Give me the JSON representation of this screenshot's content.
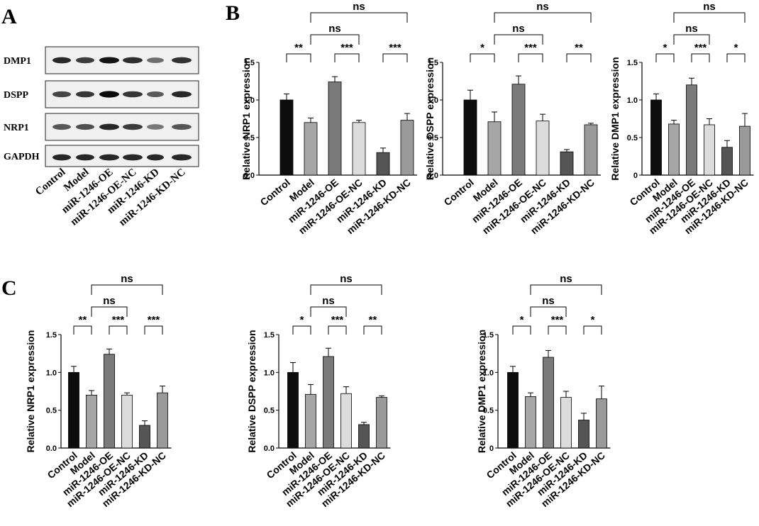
{
  "panels": {
    "a": "A",
    "b": "B",
    "c": "C"
  },
  "western_blot": {
    "rows": [
      "DMP1",
      "DSPP",
      "NRP1",
      "GAPDH"
    ],
    "lanes": [
      "Control",
      "Model",
      "miR-1246-OE",
      "miR-1246-OE-NC",
      "miR-1246-KD",
      "miR-1246-KD-NC"
    ],
    "band_intensity": {
      "DMP1": [
        0.85,
        0.75,
        0.95,
        0.82,
        0.5,
        0.8
      ],
      "DSPP": [
        0.7,
        0.78,
        1.0,
        0.78,
        0.6,
        0.85
      ],
      "NRP1": [
        0.62,
        0.65,
        0.85,
        0.75,
        0.45,
        0.62
      ],
      "GAPDH": [
        0.85,
        0.85,
        0.85,
        0.85,
        0.85,
        0.85
      ]
    }
  },
  "colors": {
    "bars": [
      "#0d0d0d",
      "#a6a6a6",
      "#7a7a7a",
      "#dcdcdc",
      "#555555",
      "#9a9a9a"
    ]
  },
  "chart_data": [
    {
      "panel": "B",
      "type": "bar",
      "categories": [
        "Control",
        "Model",
        "miR-1246-OE",
        "miR-1246-OE-NC",
        "miR-1246-KD",
        "miR-1246-KD-NC"
      ],
      "values": [
        1.0,
        0.7,
        1.24,
        0.7,
        0.3,
        0.73
      ],
      "errors": [
        0.08,
        0.06,
        0.07,
        0.03,
        0.06,
        0.09
      ],
      "ylabel": "Relative NRP1 expression",
      "ylim": [
        0,
        1.5
      ],
      "yticks": [
        "0.0",
        "0.5",
        "1.0",
        "1.5"
      ],
      "significance": [
        {
          "from": 0,
          "to": 1,
          "label": "**"
        },
        {
          "from": 2,
          "to": 3,
          "label": "***"
        },
        {
          "from": 4,
          "to": 5,
          "label": "***"
        },
        {
          "from": 1,
          "to": 3,
          "label": "ns"
        },
        {
          "from": 1,
          "to": 5,
          "label": "ns"
        }
      ]
    },
    {
      "panel": "B",
      "type": "bar",
      "categories": [
        "Control",
        "Model",
        "miR-1246-OE",
        "miR-1246-OE-NC",
        "miR-1246-KD",
        "miR-1246-KD-NC"
      ],
      "values": [
        1.0,
        0.71,
        1.21,
        0.72,
        0.31,
        0.67
      ],
      "errors": [
        0.13,
        0.13,
        0.11,
        0.09,
        0.03,
        0.02
      ],
      "ylabel": "Relative DSPP expression",
      "ylim": [
        0,
        1.5
      ],
      "yticks": [
        "0.0",
        "0.5",
        "1.0",
        "1.5"
      ],
      "significance": [
        {
          "from": 0,
          "to": 1,
          "label": "*"
        },
        {
          "from": 2,
          "to": 3,
          "label": "***"
        },
        {
          "from": 4,
          "to": 5,
          "label": "**"
        },
        {
          "from": 1,
          "to": 3,
          "label": "ns"
        },
        {
          "from": 1,
          "to": 5,
          "label": "ns"
        }
      ]
    },
    {
      "panel": "B",
      "type": "bar",
      "categories": [
        "Control",
        "Model",
        "miR-1246-OE",
        "miR-1246-OE-NC",
        "miR-1246-KD",
        "miR-1246-KD-NC"
      ],
      "values": [
        1.0,
        0.68,
        1.2,
        0.67,
        0.37,
        0.65
      ],
      "errors": [
        0.08,
        0.05,
        0.09,
        0.08,
        0.09,
        0.17
      ],
      "ylabel": "Relative DMP1 expression",
      "ylim": [
        0,
        1.5
      ],
      "yticks": [
        "0",
        "0.5",
        "1.0",
        "1.5"
      ],
      "significance": [
        {
          "from": 0,
          "to": 1,
          "label": "*"
        },
        {
          "from": 2,
          "to": 3,
          "label": "***"
        },
        {
          "from": 4,
          "to": 5,
          "label": "*"
        },
        {
          "from": 1,
          "to": 3,
          "label": "ns"
        },
        {
          "from": 1,
          "to": 5,
          "label": "ns"
        }
      ]
    },
    {
      "panel": "C",
      "type": "bar",
      "categories": [
        "Control",
        "Model",
        "miR-1246-OE",
        "miR-1246-OE-NC",
        "miR-1246-KD",
        "miR-1246-KD-NC"
      ],
      "values": [
        1.0,
        0.7,
        1.24,
        0.7,
        0.3,
        0.73
      ],
      "errors": [
        0.08,
        0.06,
        0.07,
        0.03,
        0.06,
        0.09
      ],
      "ylabel": "Relative NRP1 expression",
      "ylim": [
        0,
        1.5
      ],
      "yticks": [
        "0.0",
        "0.5",
        "1.0",
        "1.5"
      ],
      "significance": [
        {
          "from": 0,
          "to": 1,
          "label": "**"
        },
        {
          "from": 2,
          "to": 3,
          "label": "***"
        },
        {
          "from": 4,
          "to": 5,
          "label": "***"
        },
        {
          "from": 1,
          "to": 3,
          "label": "ns"
        },
        {
          "from": 1,
          "to": 5,
          "label": "ns"
        }
      ]
    },
    {
      "panel": "C",
      "type": "bar",
      "categories": [
        "Control",
        "Model",
        "miR-1246-OE",
        "miR-1246-OE-NC",
        "miR-1246-KD",
        "miR-1246-KD-NC"
      ],
      "values": [
        1.0,
        0.71,
        1.21,
        0.72,
        0.31,
        0.67
      ],
      "errors": [
        0.13,
        0.13,
        0.11,
        0.09,
        0.03,
        0.02
      ],
      "ylabel": "Relative DSPP expression",
      "ylim": [
        0,
        1.5
      ],
      "yticks": [
        "0.0",
        "0.5",
        "1.0",
        "1.5"
      ],
      "significance": [
        {
          "from": 0,
          "to": 1,
          "label": "*"
        },
        {
          "from": 2,
          "to": 3,
          "label": "***"
        },
        {
          "from": 4,
          "to": 5,
          "label": "**"
        },
        {
          "from": 1,
          "to": 3,
          "label": "ns"
        },
        {
          "from": 1,
          "to": 5,
          "label": "ns"
        }
      ]
    },
    {
      "panel": "C",
      "type": "bar",
      "categories": [
        "Control",
        "Model",
        "miR-1246-OE",
        "miR-1246-OE-NC",
        "miR-1246-KD",
        "miR-1246-KD-NC"
      ],
      "values": [
        1.0,
        0.68,
        1.2,
        0.67,
        0.37,
        0.65
      ],
      "errors": [
        0.08,
        0.05,
        0.09,
        0.08,
        0.09,
        0.17
      ],
      "ylabel": "Relative DMP1 expression",
      "ylim": [
        0,
        1.5
      ],
      "yticks": [
        "0",
        "0.5",
        "1.0",
        "1.5"
      ],
      "significance": [
        {
          "from": 0,
          "to": 1,
          "label": "*"
        },
        {
          "from": 2,
          "to": 3,
          "label": "***"
        },
        {
          "from": 4,
          "to": 5,
          "label": "*"
        },
        {
          "from": 1,
          "to": 3,
          "label": "ns"
        },
        {
          "from": 1,
          "to": 5,
          "label": "ns"
        }
      ]
    }
  ]
}
